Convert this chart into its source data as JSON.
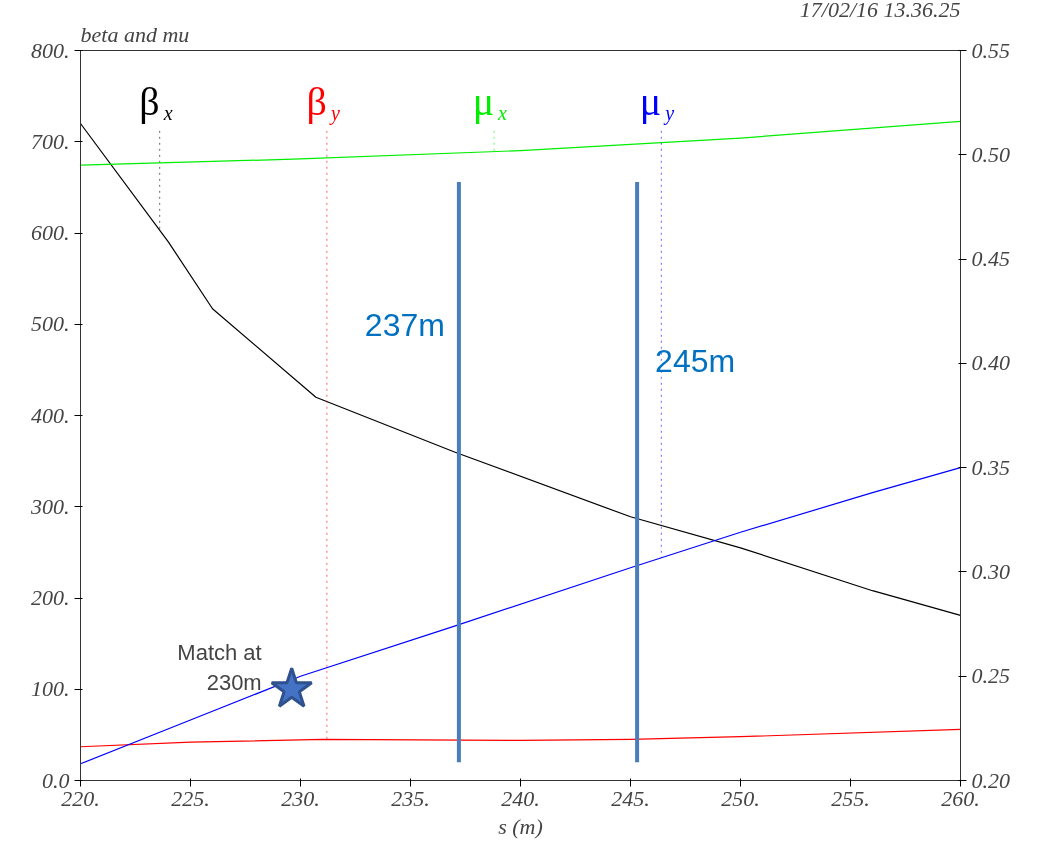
{
  "chart_data": {
    "type": "line",
    "title": "beta and mu",
    "subtitle": "17/02/16 13.36.25",
    "xlabel": "s (m)",
    "xlim": [
      220,
      260
    ],
    "xticks": [
      {
        "value": 220,
        "label": "220."
      },
      {
        "value": 225,
        "label": "225."
      },
      {
        "value": 230,
        "label": "230."
      },
      {
        "value": 235,
        "label": "235."
      },
      {
        "value": 240,
        "label": "240."
      },
      {
        "value": 245,
        "label": "245."
      },
      {
        "value": 250,
        "label": "250."
      },
      {
        "value": 255,
        "label": "255."
      },
      {
        "value": 260,
        "label": "260."
      }
    ],
    "ylim": [
      0,
      800
    ],
    "yticks": [
      {
        "value": 0,
        "label": "0.0"
      },
      {
        "value": 100,
        "label": "100."
      },
      {
        "value": 200,
        "label": "200."
      },
      {
        "value": 300,
        "label": "300."
      },
      {
        "value": 400,
        "label": "400."
      },
      {
        "value": 500,
        "label": "500."
      },
      {
        "value": 600,
        "label": "600."
      },
      {
        "value": 700,
        "label": "700."
      },
      {
        "value": 800,
        "label": "800."
      }
    ],
    "y2lim": [
      0.2,
      0.55
    ],
    "y2ticks": [
      {
        "value": 0.2,
        "label": "0.20"
      },
      {
        "value": 0.25,
        "label": "0.25"
      },
      {
        "value": 0.3,
        "label": "0.30"
      },
      {
        "value": 0.35,
        "label": "0.35"
      },
      {
        "value": 0.4,
        "label": "0.40"
      },
      {
        "value": 0.45,
        "label": "0.45"
      },
      {
        "value": 0.5,
        "label": "0.50"
      },
      {
        "value": 0.55,
        "label": "0.55"
      }
    ],
    "grid": false,
    "marker": "none",
    "line_style": "solid",
    "series": [
      {
        "name": "β$_{x}$",
        "color": "#000000",
        "x": [
          220,
          224,
          226,
          230.7,
          237,
          245,
          250,
          256,
          260
        ],
        "values": [
          720,
          590,
          517,
          420,
          360,
          289,
          255,
          208,
          181
        ]
      },
      {
        "name": "β$_{y}$",
        "color": "#ff0000",
        "x": [
          220,
          225,
          231,
          240,
          245,
          250,
          260
        ],
        "values": [
          37,
          42,
          45,
          44,
          45,
          48,
          56
        ]
      },
      {
        "name": "μ$_{x}$",
        "color": "#00ee00",
        "axis": "y2",
        "x": [
          220,
          230,
          240,
          250,
          260
        ],
        "values": [
          0.495,
          0.498,
          0.502,
          0.508,
          0.516
        ]
      },
      {
        "name": "μ$_{y}$",
        "color": "#0000ff",
        "axis": "y2",
        "x": [
          220,
          225,
          230,
          237,
          245,
          250,
          256,
          260
        ],
        "values": [
          0.208,
          0.229,
          0.25,
          0.274,
          0.302,
          0.319,
          0.338,
          0.35
        ]
      },
      {
        "type": "scatter",
        "marker": "star",
        "color": "#4472c4",
        "x": [
          229.6
        ],
        "values": [
          100
        ]
      }
    ],
    "ref_lines": [
      {
        "axis": "x",
        "value": 237.2,
        "label": "237m",
        "color": "#4a7ebb"
      },
      {
        "axis": "x",
        "value": 245.3,
        "label": "245m",
        "color": "#4a7ebb"
      }
    ],
    "annotations": [
      "Match at\n230m"
    ]
  }
}
